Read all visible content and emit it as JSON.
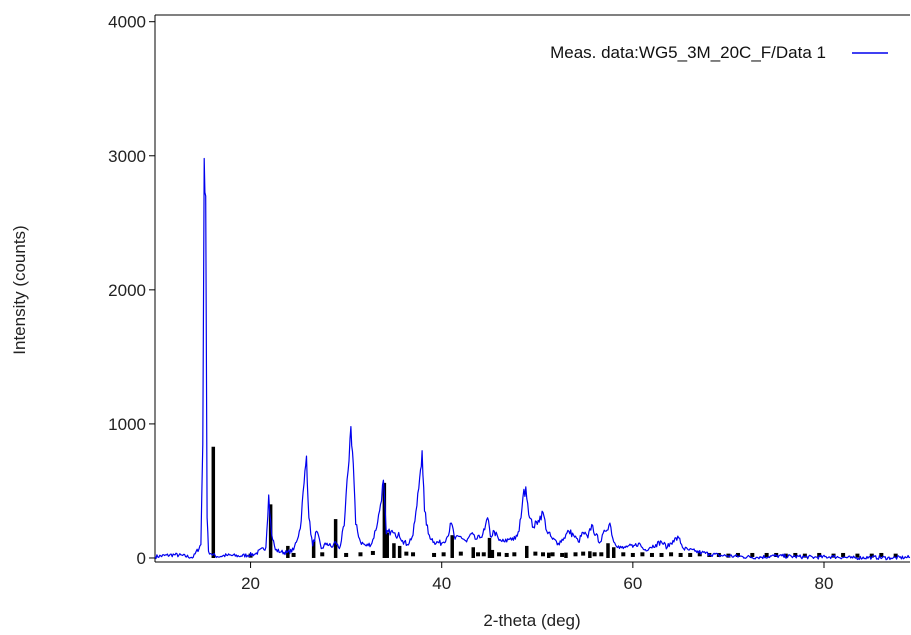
{
  "chart_data": {
    "type": "line",
    "title": "",
    "xlabel": "2-theta (deg)",
    "ylabel": "Intensity (counts)",
    "xlim": [
      10,
      89
    ],
    "ylim": [
      -30,
      4050
    ],
    "x_ticks": [
      20,
      40,
      60,
      80
    ],
    "y_ticks": [
      0,
      1000,
      2000,
      3000,
      4000
    ],
    "grid": false,
    "legend_position": "top-right",
    "colors": {
      "measured": "#0000ee",
      "reference": "#000000"
    },
    "series": [
      {
        "name": "Meas. data:WG5_3M_20C_F/Data 1",
        "style": "line",
        "x": [
          10.0,
          12.0,
          14.0,
          14.8,
          15.0,
          15.15,
          15.3,
          15.45,
          15.6,
          15.9,
          16.5,
          17.5,
          19.0,
          20.5,
          21.6,
          21.9,
          22.2,
          22.6,
          23.2,
          23.8,
          24.5,
          25.2,
          25.6,
          25.85,
          26.1,
          26.5,
          26.9,
          27.4,
          28.0,
          28.5,
          28.9,
          29.3,
          29.8,
          30.2,
          30.5,
          30.75,
          31.0,
          31.5,
          32.1,
          32.7,
          33.3,
          33.6,
          33.9,
          34.2,
          34.7,
          35.2,
          35.5,
          35.9,
          36.4,
          37.0,
          37.4,
          37.7,
          37.95,
          38.2,
          38.6,
          39.2,
          40.0,
          40.6,
          41.0,
          41.4,
          42.0,
          42.6,
          43.1,
          43.5,
          44.0,
          44.5,
          44.8,
          45.1,
          45.5,
          46.0,
          46.6,
          47.2,
          47.7,
          48.1,
          48.5,
          48.8,
          49.2,
          49.6,
          50.1,
          50.6,
          51.0,
          51.6,
          52.2,
          52.8,
          53.3,
          53.8,
          54.3,
          54.8,
          55.3,
          55.7,
          56.1,
          56.6,
          57.1,
          57.6,
          58.0,
          58.5,
          59.0,
          59.5,
          60.0,
          60.6,
          61.2,
          61.8,
          62.4,
          63.0,
          63.6,
          64.2,
          64.8,
          65.3,
          65.8,
          66.5,
          67.2,
          68.0,
          69.0,
          70.0,
          71.5,
          73.0,
          75.0,
          77.0,
          79.0,
          81.0,
          83.0,
          85.0,
          87.0,
          89.0
        ],
        "y": [
          10,
          25,
          5,
          100,
          850,
          2980,
          2700,
          300,
          50,
          30,
          10,
          20,
          15,
          30,
          80,
          470,
          180,
          60,
          45,
          40,
          60,
          220,
          560,
          760,
          300,
          90,
          200,
          70,
          110,
          80,
          120,
          70,
          240,
          650,
          980,
          700,
          250,
          120,
          90,
          110,
          270,
          400,
          580,
          180,
          200,
          160,
          190,
          130,
          100,
          170,
          390,
          600,
          800,
          350,
          180,
          120,
          110,
          160,
          260,
          140,
          160,
          120,
          180,
          140,
          150,
          210,
          300,
          160,
          200,
          130,
          120,
          150,
          140,
          200,
          450,
          530,
          300,
          230,
          280,
          340,
          200,
          140,
          110,
          150,
          200,
          170,
          120,
          190,
          150,
          250,
          170,
          120,
          200,
          260,
          120,
          90,
          70,
          90,
          80,
          110,
          60,
          80,
          100,
          120,
          80,
          130,
          150,
          70,
          60,
          50,
          40,
          30,
          20,
          15,
          10,
          5,
          15,
          10,
          5,
          10,
          0,
          5,
          0,
          5
        ]
      },
      {
        "style": "sticks",
        "x": [
          16.1,
          22.1,
          23.9,
          26.6,
          28.9,
          34.0,
          34.3,
          35.0,
          35.6,
          41.1,
          43.3,
          45.0,
          45.3,
          48.9,
          51.2,
          53.0,
          55.5,
          57.4,
          58.0
        ],
        "y": [
          830,
          400,
          90,
          130,
          290,
          560,
          190,
          110,
          90,
          170,
          80,
          150,
          60,
          90,
          40,
          40,
          50,
          110,
          80
        ]
      },
      {
        "style": "dots",
        "x": [
          20.0,
          24.5,
          27.5,
          30.0,
          31.5,
          32.8,
          36.3,
          37.0,
          39.2,
          40.2,
          42.0,
          43.8,
          44.4,
          46.0,
          46.8,
          47.6,
          49.8,
          50.6,
          51.6,
          52.6,
          54.0,
          54.8,
          56.0,
          56.7,
          59.0,
          60.0,
          61.0,
          62.0,
          63.0,
          64.0,
          65.0,
          66.0,
          67.0,
          68.0,
          69.0,
          70.0,
          71.0,
          72.5,
          74.0,
          75.0,
          76.0,
          77.0,
          78.0,
          79.5,
          81.0,
          82.0,
          83.5,
          85.0,
          86.0,
          87.5
        ],
        "y": [
          10,
          15,
          20,
          15,
          20,
          30,
          25,
          20,
          15,
          20,
          25,
          20,
          20,
          20,
          15,
          20,
          25,
          20,
          20,
          15,
          20,
          25,
          20,
          20,
          20,
          15,
          20,
          15,
          15,
          20,
          15,
          15,
          20,
          15,
          15,
          10,
          15,
          15,
          15,
          15,
          10,
          15,
          10,
          15,
          10,
          15,
          10,
          10,
          15,
          10
        ]
      }
    ]
  }
}
